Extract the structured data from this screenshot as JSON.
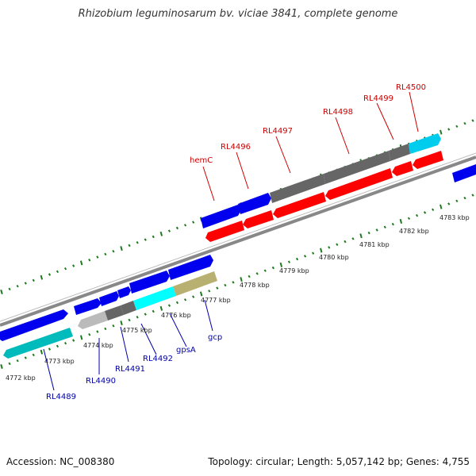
{
  "title": "Rhizobium leguminosarum bv. viciae 3841, complete genome",
  "footer": {
    "accession": "Accession: NC_008380",
    "summary": "Topology: circular; Length: 5,057,142 bp; Genes: 4,755"
  },
  "colors": {
    "forward_label": "#cc0000",
    "reverse_label": "#0000aa",
    "tick": "#1e7a1e",
    "backbone": "#888888",
    "red_gene": "#ff0000",
    "blue_gene": "#0000ee",
    "gray_gene": "#666666",
    "cyan_gene": "#00dddd",
    "teal_gene": "#00bbbb",
    "khaki_gene": "#b8b070",
    "lightgray_gene": "#bbbbbb"
  },
  "scale_labels": [
    "4772 kbp",
    "4773 kbp",
    "4774 kbp",
    "4775 kbp",
    "4776 kbp",
    "4777 kbp",
    "4778 kbp",
    "4779 kbp",
    "4780 kbp",
    "4781 kbp",
    "4782 kbp",
    "4783 kbp"
  ],
  "top_labels": [
    "hemC",
    "RL4496",
    "RL4497",
    "RL4498",
    "RL4499",
    "RL4500"
  ],
  "bottom_labels": [
    "RL4489",
    "RL4490",
    "RL4491",
    "RL4492",
    "gpsA",
    "gcp"
  ]
}
